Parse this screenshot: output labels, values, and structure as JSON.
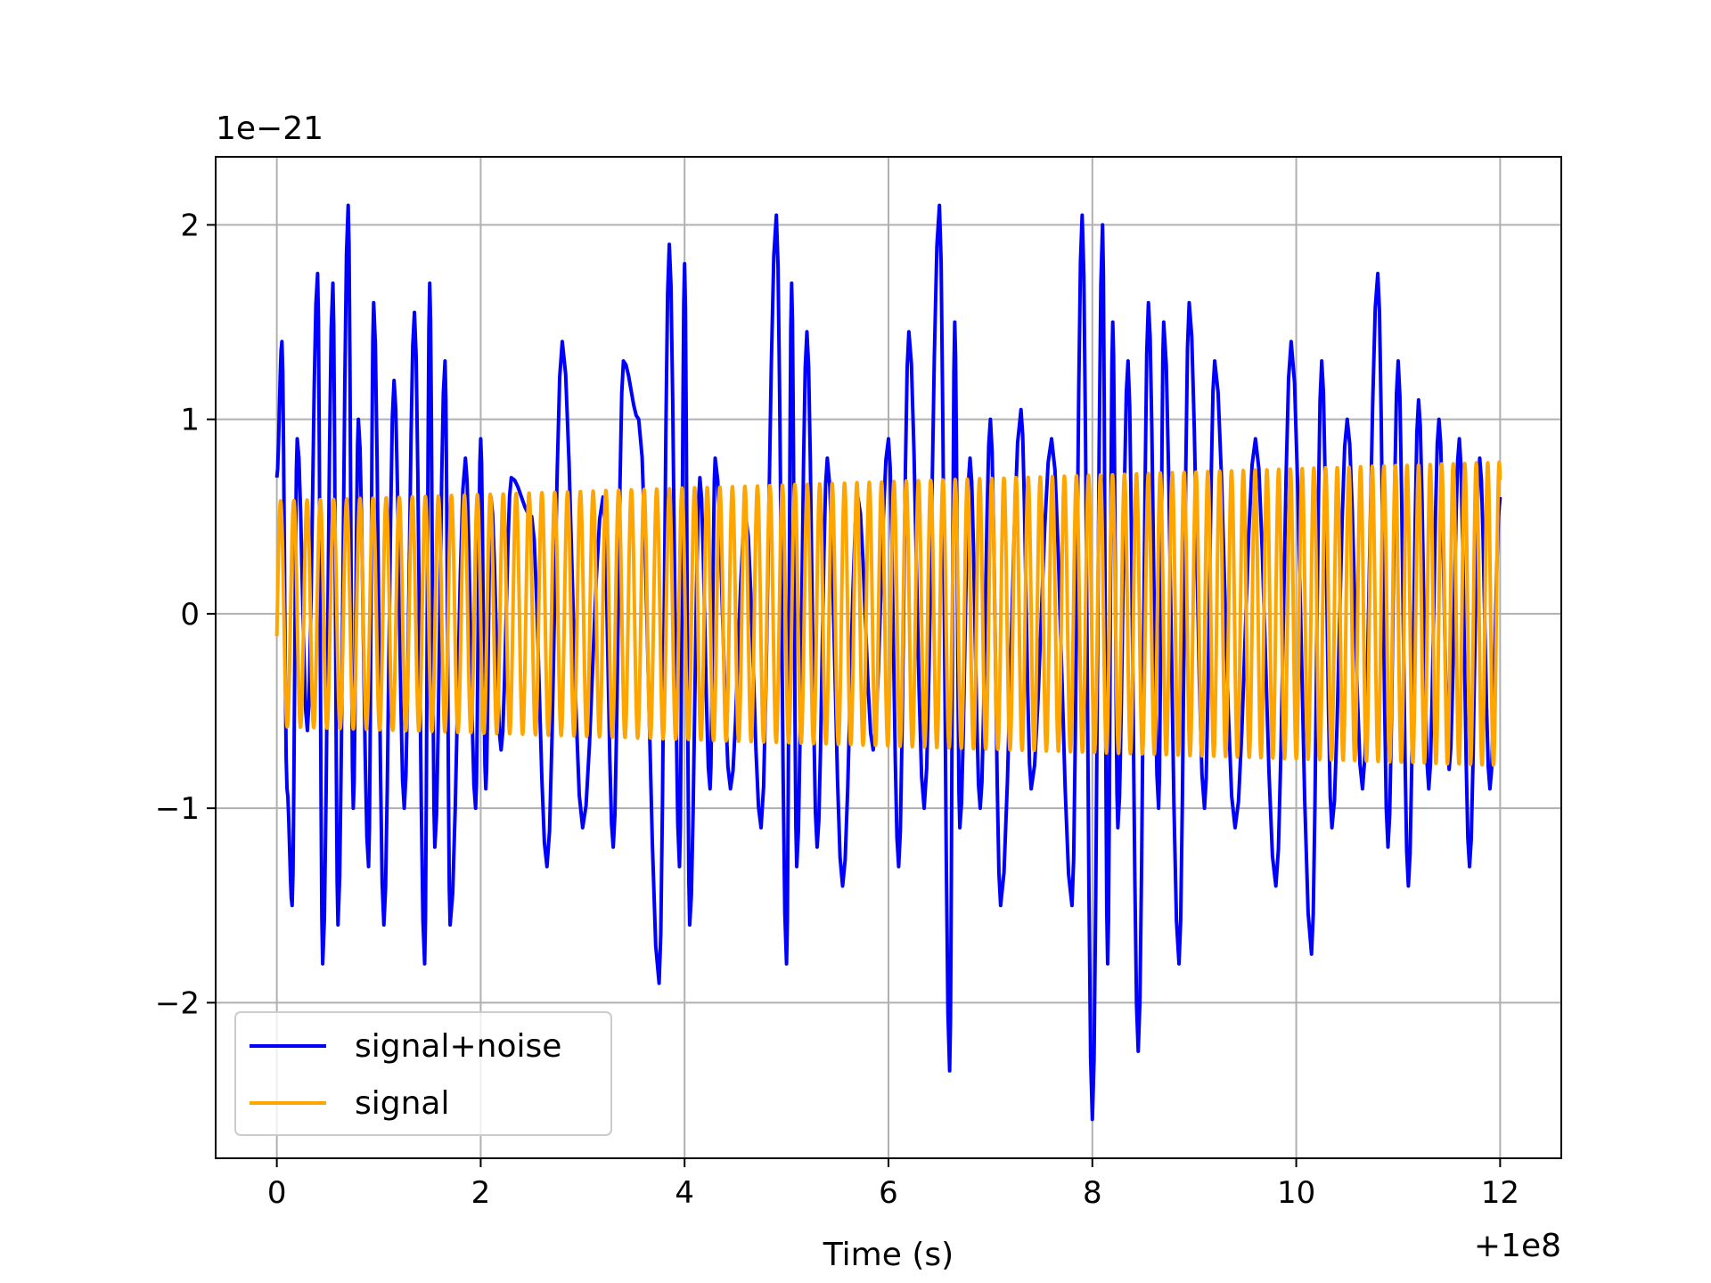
{
  "chart_data": {
    "type": "line",
    "title": "",
    "xlabel": "Time (s)",
    "ylabel": "",
    "x_offset_label": "+1e8",
    "y_scale_label": "1e−21",
    "xlim": [
      -0.6,
      12.6
    ],
    "ylim": [
      -2.8,
      2.35
    ],
    "x_ticks": [
      0,
      2,
      4,
      6,
      8,
      10,
      12
    ],
    "x_tick_labels": [
      "0",
      "2",
      "4",
      "6",
      "8",
      "10",
      "12"
    ],
    "y_ticks": [
      -2,
      -1,
      0,
      1,
      2
    ],
    "y_tick_labels": [
      "−2",
      "−1",
      "0",
      "1",
      "2"
    ],
    "grid": true,
    "legend": "lower-left",
    "series": [
      {
        "name": "signal+noise",
        "color": "#0000ff",
        "x": [
          0.0,
          0.05,
          0.1,
          0.15,
          0.2,
          0.3,
          0.4,
          0.45,
          0.55,
          0.6,
          0.7,
          0.75,
          0.8,
          0.9,
          0.95,
          1.05,
          1.15,
          1.25,
          1.35,
          1.45,
          1.5,
          1.55,
          1.65,
          1.7,
          1.85,
          1.95,
          2.0,
          2.05,
          2.1,
          2.2,
          2.3,
          2.5,
          2.65,
          2.8,
          3.0,
          3.2,
          3.3,
          3.4,
          3.55,
          3.75,
          3.85,
          3.95,
          4.0,
          4.05,
          4.15,
          4.25,
          4.3,
          4.45,
          4.6,
          4.75,
          4.9,
          5.0,
          5.05,
          5.1,
          5.2,
          5.3,
          5.4,
          5.55,
          5.7,
          5.85,
          6.0,
          6.1,
          6.2,
          6.35,
          6.5,
          6.6,
          6.65,
          6.7,
          6.8,
          6.9,
          7.0,
          7.1,
          7.3,
          7.4,
          7.6,
          7.8,
          7.9,
          8.0,
          8.1,
          8.15,
          8.2,
          8.25,
          8.35,
          8.45,
          8.55,
          8.65,
          8.7,
          8.85,
          8.95,
          9.1,
          9.2,
          9.4,
          9.6,
          9.8,
          9.95,
          10.15,
          10.25,
          10.35,
          10.5,
          10.65,
          10.8,
          10.9,
          11.0,
          11.1,
          11.2,
          11.3,
          11.4,
          11.5,
          11.6,
          11.7,
          11.8,
          11.9,
          12.0
        ],
        "values": [
          0.7,
          1.4,
          -0.9,
          -1.5,
          0.9,
          -0.6,
          1.75,
          -1.8,
          1.7,
          -1.6,
          2.1,
          -1.0,
          1.0,
          -1.3,
          1.6,
          -1.6,
          1.2,
          -1.0,
          1.55,
          -1.8,
          1.7,
          -1.2,
          1.3,
          -1.6,
          0.8,
          -1.0,
          0.9,
          -0.9,
          0.6,
          -0.7,
          0.7,
          0.5,
          -1.3,
          1.4,
          -1.1,
          0.6,
          -1.2,
          1.3,
          1.0,
          -1.9,
          1.9,
          -1.3,
          1.8,
          -1.6,
          0.7,
          -0.9,
          0.8,
          -0.9,
          0.5,
          -1.1,
          2.05,
          -1.8,
          1.7,
          -1.3,
          1.45,
          -1.2,
          0.8,
          -1.4,
          0.6,
          -0.7,
          0.9,
          -1.3,
          1.45,
          -1.0,
          2.1,
          -2.35,
          1.5,
          -1.1,
          0.8,
          -1.0,
          1.0,
          -1.5,
          1.05,
          -0.9,
          0.9,
          -1.5,
          2.05,
          -2.6,
          2.0,
          -1.8,
          1.5,
          -1.1,
          1.3,
          -2.25,
          1.6,
          -1.0,
          1.5,
          -1.8,
          1.6,
          -1.0,
          1.3,
          -1.1,
          0.9,
          -1.4,
          1.4,
          -1.75,
          1.3,
          -1.1,
          1.0,
          -0.9,
          1.75,
          -1.2,
          1.3,
          -1.4,
          1.1,
          -0.9,
          1.0,
          -0.8,
          0.9,
          -1.3,
          0.8,
          -0.9,
          0.6
        ]
      },
      {
        "name": "signal",
        "color": "#ffa500",
        "amplitude_start": 0.58,
        "amplitude_end": 0.78,
        "cycles": 92,
        "x_range": [
          0,
          12
        ]
      }
    ]
  }
}
